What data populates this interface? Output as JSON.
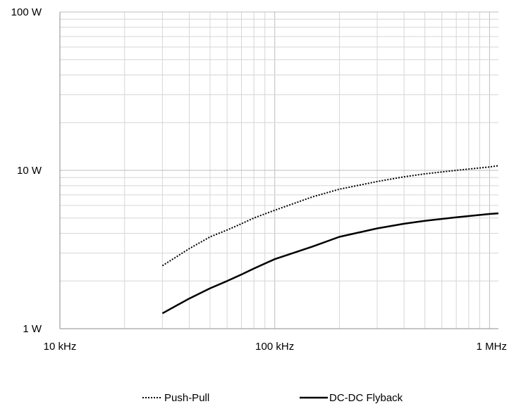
{
  "chart_data": {
    "type": "line",
    "x_scale": "log",
    "y_scale": "log",
    "xlim": [
      10,
      1100
    ],
    "ylim": [
      1,
      100
    ],
    "x_ticks": [
      {
        "value": 10,
        "label": "10 kHz"
      },
      {
        "value": 100,
        "label": "100 kHz"
      },
      {
        "value": 1000,
        "label": "1 MHz"
      }
    ],
    "y_ticks": [
      {
        "value": 1,
        "label": "1 W"
      },
      {
        "value": 10,
        "label": "10 W"
      },
      {
        "value": 100,
        "label": "100 W"
      }
    ],
    "grid": true,
    "minor_grid": true,
    "legend_position": "bottom",
    "series": [
      {
        "name": "Push-Pull",
        "style": "dotted",
        "color": "#000000",
        "x": [
          30,
          40,
          50,
          60,
          70,
          80,
          100,
          150,
          200,
          300,
          400,
          500,
          700,
          1000,
          1100
        ],
        "y": [
          2.5,
          3.2,
          3.8,
          4.2,
          4.6,
          5.0,
          5.6,
          6.8,
          7.6,
          8.5,
          9.1,
          9.5,
          10.0,
          10.5,
          10.7
        ]
      },
      {
        "name": "DC-DC Flyback",
        "style": "solid",
        "color": "#000000",
        "x": [
          30,
          40,
          50,
          60,
          70,
          80,
          100,
          150,
          200,
          300,
          400,
          500,
          700,
          1000,
          1100
        ],
        "y": [
          1.25,
          1.55,
          1.8,
          2.0,
          2.2,
          2.4,
          2.75,
          3.3,
          3.8,
          4.3,
          4.6,
          4.8,
          5.05,
          5.3,
          5.35
        ]
      }
    ]
  }
}
